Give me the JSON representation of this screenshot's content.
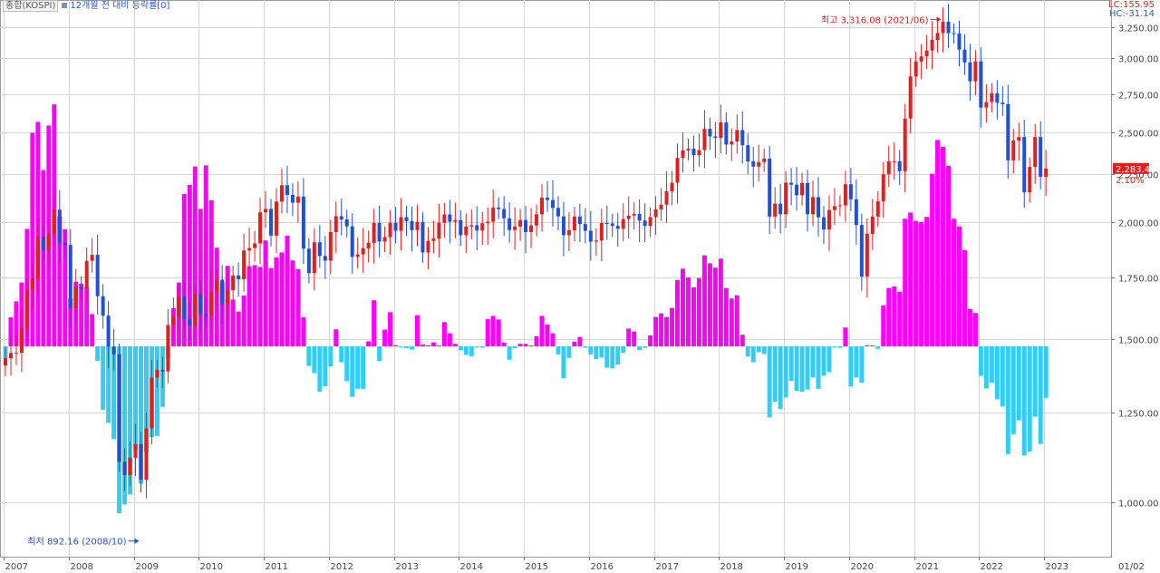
{
  "legend": {
    "series_name": "종합(KOSPI)",
    "indicator_name": "12개월 전 대비 등락률[0]"
  },
  "corner": {
    "lc_label": "LC:155.95",
    "hc_label": "HC:-31.14"
  },
  "date_label": "01/02",
  "colors": {
    "up": "#e02020",
    "down": "#1f50d6",
    "positive_bar": "#ff00ff",
    "negative_bar": "#33ccf5",
    "grid": "#d4d4d4",
    "axis_text": "#444444"
  },
  "chart_data": {
    "type": "candlestick+bar",
    "interval": "monthly",
    "y_ticks": [
      "1,000.00",
      "1,250.00",
      "1,500.00",
      "1,750.00",
      "2,000.00",
      "2,250.00",
      "2,500.00",
      "2,750.00",
      "3,000.00",
      "3,250.00"
    ],
    "y_tick_values": [
      1000,
      1250,
      1500,
      1750,
      2000,
      2250,
      2500,
      2750,
      3000,
      3250
    ],
    "x_labels": [
      "2007",
      "2008",
      "2009",
      "2010",
      "2011",
      "2012",
      "2013",
      "2014",
      "2015",
      "2016",
      "2017",
      "2018",
      "2019",
      "2020",
      "2021",
      "2022",
      "2023"
    ],
    "last_price_label": "2,283.45",
    "last_change_label": "2.10%",
    "last_price": 2283.45,
    "annotations": {
      "high": {
        "label": "최고 3,316.08 (2021/06)",
        "value": 3316.08
      },
      "low": {
        "label": "최저 892.16 (2008/10)",
        "value": 892.16
      }
    },
    "closes": [
      1435,
      1453,
      1453,
      1545,
      1700,
      1744,
      1934,
      1873,
      1946,
      2065,
      1907,
      1897,
      1625,
      1712,
      1704,
      1825,
      1852,
      1674,
      1595,
      1474,
      1448,
      1113,
      1076,
      1124,
      1162,
      1063,
      1206,
      1369,
      1395,
      1390,
      1557,
      1591,
      1673,
      1581,
      1555,
      1682,
      1602,
      1594,
      1692,
      1741,
      1641,
      1698,
      1759,
      1743,
      1872,
      1883,
      1904,
      2051,
      2069,
      1939,
      2107,
      2192,
      2142,
      2101,
      2133,
      1880,
      1770,
      1909,
      1847,
      1826,
      1955,
      2031,
      2014,
      1981,
      1843,
      1854,
      1881,
      1906,
      1996,
      1912,
      1932,
      1997,
      1961,
      2026,
      2005,
      1964,
      2001,
      1863,
      1915,
      1926,
      1997,
      2040,
      2002,
      2011,
      1941,
      1980,
      1986,
      1962,
      1995,
      2002,
      2076,
      2068,
      2020,
      1964,
      1980,
      2011,
      1955,
      1985,
      2041,
      2127,
      2115,
      2074,
      2030,
      1941,
      1963,
      2029,
      1991,
      1961,
      1912,
      1917,
      1996,
      1994,
      1983,
      1970,
      2016,
      2034,
      2043,
      2008,
      1983,
      2026,
      2067,
      2091,
      2160,
      2205,
      2347,
      2392,
      2402,
      2363,
      2394,
      2523,
      2476,
      2467,
      2566,
      2427,
      2445,
      2515,
      2423,
      2326,
      2295,
      2322,
      2343,
      2029,
      2096,
      2041,
      2205,
      2195,
      2140,
      2203,
      2041,
      2130,
      2025,
      1967,
      2063,
      2083,
      2087,
      2197,
      2119,
      1987,
      1754,
      1947,
      2029,
      2108,
      2249,
      2326,
      2327,
      2267,
      2591,
      2873,
      2976,
      3013,
      3061,
      3147,
      3203,
      3296,
      3202,
      3199,
      3068,
      2970,
      2839,
      2977,
      2663,
      2699,
      2757,
      2695,
      2685,
      2332,
      2451,
      2472,
      2155,
      2293,
      2472,
      2236,
      2283
    ],
    "yoy_change_percent": [
      -3.4,
      8.0,
      12.4,
      17.6,
      32.4,
      58.9,
      61.9,
      48.6,
      60.9,
      66.7,
      35.8,
      32.3,
      13.2,
      17.8,
      17.3,
      16.3,
      8.9,
      -4.0,
      -17.5,
      -21.1,
      -25.6,
      -46.0,
      -43.6,
      -40.8,
      -28.5,
      -37.9,
      -29.2,
      -25.0,
      -24.7,
      -16.7,
      -3.3,
      10.5,
      17.6,
      42.0,
      44.5,
      49.6,
      37.9,
      49.9,
      40.3,
      27.2,
      17.6,
      22.2,
      12.9,
      9.6,
      14.0,
      22.1,
      22.4,
      21.9,
      29.2,
      21.6,
      24.5,
      25.9,
      30.5,
      23.7,
      21.3,
      8.0,
      -5.4,
      -7.4,
      -12.5,
      -11.0,
      -5.5,
      4.7,
      -4.4,
      -9.6,
      -13.9,
      -11.7,
      -11.7,
      1.4,
      12.7,
      -4.0,
      4.6,
      9.4,
      0.3,
      -0.2,
      -0.5,
      -0.9,
      8.6,
      0.5,
      0.0,
      1.1,
      0.0,
      6.7,
      3.6,
      0.7,
      -1.1,
      -2.3,
      -2.7,
      -0.1,
      -0.3,
      7.5,
      8.4,
      7.4,
      1.0,
      -3.7,
      -0.5,
      0.7,
      0.7,
      0.2,
      2.8,
      8.4,
      6.0,
      3.6,
      -2.2,
      -8.8,
      -3.2,
      1.3,
      2.6,
      -0.4,
      -2.2,
      -3.5,
      -3.1,
      -5.9,
      -6.1,
      -5.0,
      -1.8,
      4.9,
      4.1,
      -1.0,
      -0.4,
      3.0,
      8.1,
      9.1,
      8.1,
      10.6,
      18.3,
      21.4,
      19.0,
      16.3,
      18.8,
      25.1,
      22.9,
      21.7,
      24.2,
      16.1,
      13.2,
      14.1,
      3.2,
      -2.8,
      -4.4,
      -1.6,
      -2.1,
      -19.6,
      -15.3,
      -17.3,
      -14.1,
      -9.5,
      -12.3,
      -12.5,
      -11.9,
      -8.6,
      -11.7,
      -8.1,
      -7.1,
      -0.1,
      -0.4,
      5.2,
      -11.1,
      -8.6,
      -10.0,
      0.3,
      0.0,
      -0.7,
      11.3,
      16.1,
      16.5,
      15.0,
      35.2,
      36.9,
      34.6,
      34.3,
      35.7,
      47.6,
      56.9,
      55.0,
      49.8,
      35.2,
      33.0,
      26.5,
      10.3,
      9.2,
      -8.1,
      -11.6,
      -10.0,
      -14.6,
      -16.6,
      -29.7,
      -24.2,
      -20.4,
      -30.1,
      -29.0,
      -19.4,
      -26.9,
      -14.2
    ]
  }
}
